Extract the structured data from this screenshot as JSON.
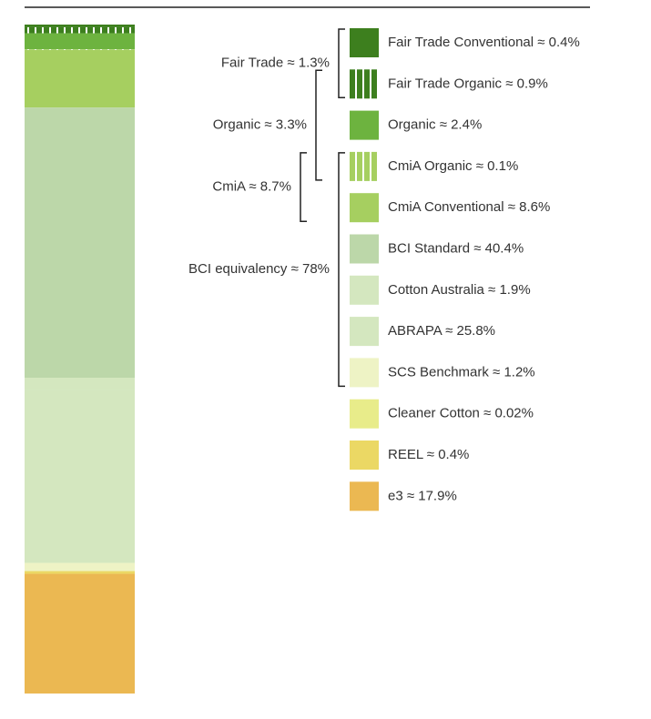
{
  "chart_data": {
    "type": "bar",
    "stacked": true,
    "series": [
      {
        "name": "Fair Trade Conventional ≈ 0.4%",
        "color": "#3d7f1e",
        "hatched": false,
        "values": [
          0.4
        ]
      },
      {
        "name": "Fair Trade Organic ≈ 0.9%",
        "color": "#3d7f1e",
        "hatched": true,
        "values": [
          0.9
        ]
      },
      {
        "name": "Organic ≈ 2.4%",
        "color": "#6db33f",
        "hatched": false,
        "values": [
          2.4
        ]
      },
      {
        "name": "CmiA Organic ≈ 0.1%",
        "color": "#a6cf60",
        "hatched": true,
        "values": [
          0.1
        ]
      },
      {
        "name": "CmiA Conventional ≈ 8.6%",
        "color": "#a6cf60",
        "hatched": false,
        "values": [
          8.6
        ]
      },
      {
        "name": "BCI Standard ≈ 40.4%",
        "color": "#bcd7a9",
        "hatched": false,
        "values": [
          40.4
        ]
      },
      {
        "name": "Cotton Australia ≈ 1.9%",
        "color": "#d4e7bf",
        "hatched": false,
        "values": [
          1.9
        ]
      },
      {
        "name": "ABRAPA ≈ 25.8%",
        "color": "#d4e7bf",
        "hatched": false,
        "values": [
          25.8
        ]
      },
      {
        "name": "SCS Benchmark ≈ 1.2%",
        "color": "#eef3c5",
        "hatched": false,
        "values": [
          1.2
        ]
      },
      {
        "name": "Cleaner Cotton ≈ 0.02%",
        "color": "#e8ec8a",
        "hatched": false,
        "values": [
          0.02
        ]
      },
      {
        "name": "REEL ≈ 0.4%",
        "color": "#ebd864",
        "hatched": false,
        "values": [
          0.4
        ]
      },
      {
        "name": "e3 ≈ 17.9%",
        "color": "#ebb852",
        "hatched": false,
        "values": [
          17.9
        ]
      }
    ],
    "brackets": [
      {
        "label": "Fair Trade ≈ 1.3%",
        "series": [
          0,
          1
        ]
      },
      {
        "label": "Organic ≈ 3.3%",
        "series": [
          1,
          3
        ]
      },
      {
        "label": "CmiA ≈ 8.7%",
        "series": [
          3,
          4
        ]
      },
      {
        "label": "BCI equivalency ≈ 78%",
        "series": [
          3,
          8
        ]
      }
    ]
  }
}
